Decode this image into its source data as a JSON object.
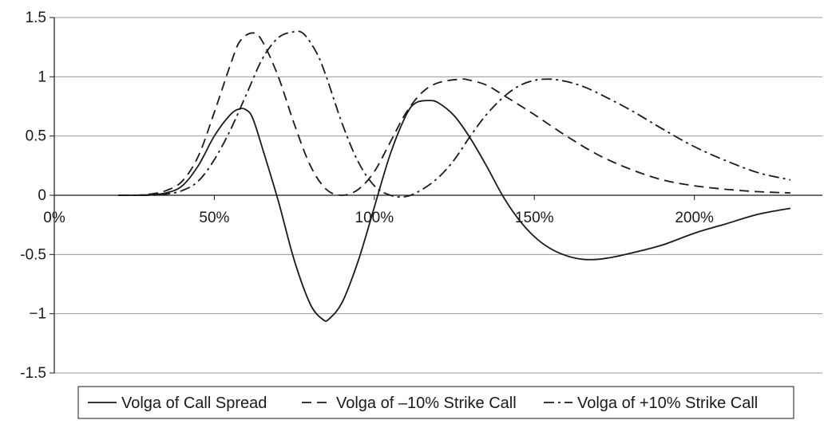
{
  "chart_data": {
    "type": "line",
    "title": "",
    "xlabel": "",
    "ylabel": "",
    "xlim": [
      0,
      240
    ],
    "ylim": [
      -1.5,
      1.5
    ],
    "x_ticks": [
      {
        "value": 0,
        "label": "0%"
      },
      {
        "value": 50,
        "label": "50%"
      },
      {
        "value": 100,
        "label": "100%"
      },
      {
        "value": 150,
        "label": "150%"
      },
      {
        "value": 200,
        "label": "200%"
      }
    ],
    "y_ticks": [
      {
        "value": 1.5,
        "label": "1.5"
      },
      {
        "value": 1,
        "label": "1"
      },
      {
        "value": 0.5,
        "label": "0.5"
      },
      {
        "value": 0,
        "label": "0"
      },
      {
        "value": -0.5,
        "label": "-0.5"
      },
      {
        "value": -1,
        "label": "−1"
      },
      {
        "value": -1.5,
        "label": "-1.5"
      }
    ],
    "grid": "horizontal",
    "legend_position": "bottom",
    "colors": {
      "line": "#1a1a1a",
      "grid": "#9a9a9a",
      "axis": "#1a1a1a"
    },
    "series": [
      {
        "name": "Volga of Call Spread",
        "dash": "solid",
        "points": [
          [
            20,
            0.0
          ],
          [
            25,
            0.0
          ],
          [
            30,
            0.005
          ],
          [
            35,
            0.02
          ],
          [
            40,
            0.08
          ],
          [
            45,
            0.25
          ],
          [
            50,
            0.5
          ],
          [
            55,
            0.68
          ],
          [
            58,
            0.73
          ],
          [
            60,
            0.72
          ],
          [
            62,
            0.65
          ],
          [
            65,
            0.4
          ],
          [
            70,
            -0.05
          ],
          [
            75,
            -0.55
          ],
          [
            80,
            -0.92
          ],
          [
            84,
            -1.05
          ],
          [
            86,
            -1.04
          ],
          [
            90,
            -0.9
          ],
          [
            95,
            -0.55
          ],
          [
            100,
            -0.1
          ],
          [
            105,
            0.35
          ],
          [
            110,
            0.68
          ],
          [
            113,
            0.78
          ],
          [
            117,
            0.8
          ],
          [
            120,
            0.78
          ],
          [
            125,
            0.67
          ],
          [
            130,
            0.48
          ],
          [
            135,
            0.25
          ],
          [
            140,
            0.0
          ],
          [
            145,
            -0.2
          ],
          [
            150,
            -0.35
          ],
          [
            155,
            -0.45
          ],
          [
            160,
            -0.51
          ],
          [
            165,
            -0.54
          ],
          [
            170,
            -0.54
          ],
          [
            175,
            -0.52
          ],
          [
            180,
            -0.49
          ],
          [
            190,
            -0.42
          ],
          [
            200,
            -0.32
          ],
          [
            210,
            -0.24
          ],
          [
            220,
            -0.16
          ],
          [
            230,
            -0.11
          ]
        ]
      },
      {
        "name": "Volga of –10% Strike Call",
        "dash": "dashed",
        "points": [
          [
            20,
            0.0
          ],
          [
            25,
            0.0
          ],
          [
            30,
            0.01
          ],
          [
            35,
            0.04
          ],
          [
            40,
            0.12
          ],
          [
            45,
            0.33
          ],
          [
            50,
            0.7
          ],
          [
            55,
            1.1
          ],
          [
            58,
            1.3
          ],
          [
            62,
            1.37
          ],
          [
            65,
            1.3
          ],
          [
            70,
            1.0
          ],
          [
            75,
            0.6
          ],
          [
            80,
            0.25
          ],
          [
            85,
            0.05
          ],
          [
            90,
            0.0
          ],
          [
            95,
            0.05
          ],
          [
            100,
            0.2
          ],
          [
            105,
            0.45
          ],
          [
            110,
            0.7
          ],
          [
            115,
            0.87
          ],
          [
            120,
            0.95
          ],
          [
            127,
            0.98
          ],
          [
            130,
            0.97
          ],
          [
            135,
            0.93
          ],
          [
            140,
            0.85
          ],
          [
            150,
            0.68
          ],
          [
            160,
            0.5
          ],
          [
            170,
            0.34
          ],
          [
            180,
            0.22
          ],
          [
            190,
            0.13
          ],
          [
            200,
            0.08
          ],
          [
            210,
            0.05
          ],
          [
            220,
            0.03
          ],
          [
            230,
            0.02
          ]
        ]
      },
      {
        "name": "Volga of +10% Strike Call",
        "dash": "dashdot",
        "points": [
          [
            20,
            0.0
          ],
          [
            25,
            0.0
          ],
          [
            30,
            0.0
          ],
          [
            35,
            0.01
          ],
          [
            40,
            0.04
          ],
          [
            45,
            0.12
          ],
          [
            50,
            0.3
          ],
          [
            55,
            0.55
          ],
          [
            60,
            0.85
          ],
          [
            65,
            1.15
          ],
          [
            70,
            1.33
          ],
          [
            75,
            1.38
          ],
          [
            78,
            1.36
          ],
          [
            82,
            1.2
          ],
          [
            85,
            1.0
          ],
          [
            90,
            0.6
          ],
          [
            95,
            0.28
          ],
          [
            100,
            0.08
          ],
          [
            105,
            0.0
          ],
          [
            110,
            -0.01
          ],
          [
            115,
            0.05
          ],
          [
            120,
            0.15
          ],
          [
            125,
            0.3
          ],
          [
            130,
            0.5
          ],
          [
            135,
            0.68
          ],
          [
            140,
            0.82
          ],
          [
            145,
            0.92
          ],
          [
            150,
            0.97
          ],
          [
            155,
            0.98
          ],
          [
            160,
            0.96
          ],
          [
            165,
            0.92
          ],
          [
            170,
            0.86
          ],
          [
            180,
            0.72
          ],
          [
            190,
            0.56
          ],
          [
            200,
            0.41
          ],
          [
            210,
            0.29
          ],
          [
            220,
            0.19
          ],
          [
            230,
            0.13
          ]
        ]
      }
    ]
  }
}
